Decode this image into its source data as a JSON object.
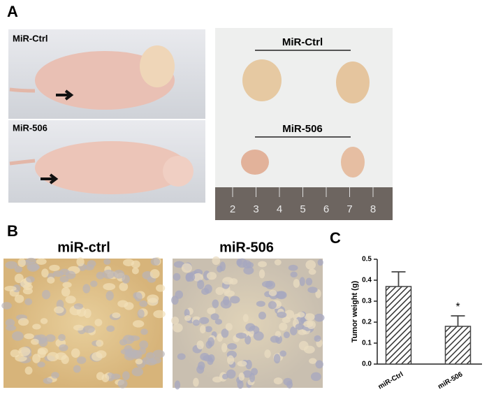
{
  "panels": {
    "a": {
      "label": "A",
      "mouse_labels": [
        "MiR-Ctrl",
        "MiR-506"
      ],
      "tumor_labels": [
        "MiR-Ctrl",
        "MiR-506"
      ],
      "ruler": [
        "2",
        "3",
        "4",
        "5",
        "6",
        "7",
        "8"
      ]
    },
    "b": {
      "label": "B",
      "titles": [
        "miR-ctrl",
        "miR-506"
      ]
    },
    "c": {
      "label": "C"
    }
  },
  "chart_data": {
    "type": "bar",
    "ylabel": "Tumor weight (g)",
    "categories": [
      "miR-Ctrl",
      "miR-506"
    ],
    "values": [
      0.37,
      0.18
    ],
    "errors": [
      0.07,
      0.05
    ],
    "annotation": "*",
    "color": "#444444",
    "ylim": [
      0,
      0.5
    ],
    "yticks": [
      {
        "value": 0,
        "label": "0.0"
      },
      0.1,
      0.2,
      0.3,
      0.4,
      0.5
    ]
  }
}
